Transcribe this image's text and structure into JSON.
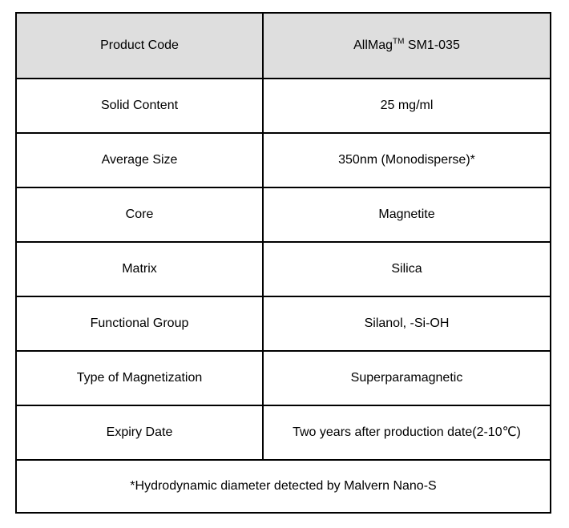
{
  "table": {
    "header_row": {
      "label": "Product Code",
      "value_prefix": "AllMag",
      "value_sup": "TM",
      "value_suffix": " SM1-035"
    },
    "rows": [
      {
        "label": "Solid Content",
        "value": "25 mg/ml"
      },
      {
        "label": "Average Size",
        "value": "350nm (Monodisperse)*"
      },
      {
        "label": "Core",
        "value": "Magnetite"
      },
      {
        "label": "Matrix",
        "value": "Silica"
      },
      {
        "label": "Functional Group",
        "value": "Silanol, -Si-OH"
      },
      {
        "label": "Type of Magnetization",
        "value": "Superparamagnetic"
      },
      {
        "label": "Expiry Date",
        "value": "Two years after production date(2-10℃)"
      }
    ],
    "footnote": "*Hydrodynamic diameter detected by Malvern Nano-S"
  },
  "colors": {
    "header_bg": "#dedede",
    "border": "#000000",
    "text": "#000000",
    "page_bg": "#ffffff"
  }
}
